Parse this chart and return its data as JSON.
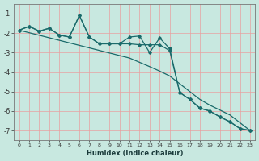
{
  "xlabel": "Humidex (Indice chaleur)",
  "background_color": "#c8e8e0",
  "grid_color": "#e8a0a0",
  "line_color": "#1a6b6b",
  "x": [
    0,
    1,
    2,
    3,
    4,
    5,
    6,
    7,
    8,
    9,
    10,
    11,
    12,
    13,
    14,
    15,
    16,
    17,
    18,
    19,
    20,
    21,
    22,
    23
  ],
  "y_line1": [
    -1.85,
    -1.65,
    -1.9,
    -1.75,
    -2.1,
    -2.2,
    -1.1,
    -2.2,
    -2.55,
    -2.55,
    -2.55,
    -2.2,
    -2.15,
    -3.0,
    -2.25,
    -2.8,
    -5.05,
    -5.4,
    -5.85,
    -6.0,
    -6.3,
    -6.55,
    -6.9,
    -7.0
  ],
  "y_line2": [
    -1.85,
    -1.65,
    -1.9,
    -1.75,
    -2.1,
    -2.2,
    -1.1,
    -2.2,
    -2.55,
    -2.55,
    -2.55,
    -2.55,
    -2.6,
    -2.6,
    -2.6,
    -2.9,
    -5.05,
    -5.4,
    -5.85,
    -6.0,
    -6.3,
    -6.55,
    -6.9,
    -7.0
  ],
  "y_trend": [
    -1.85,
    -1.98,
    -2.11,
    -2.24,
    -2.37,
    -2.5,
    -2.63,
    -2.76,
    -2.89,
    -3.02,
    -3.15,
    -3.28,
    -3.5,
    -3.72,
    -3.95,
    -4.2,
    -4.6,
    -5.0,
    -5.4,
    -5.7,
    -5.95,
    -6.2,
    -6.6,
    -7.0
  ],
  "ylim": [
    -7.5,
    -0.5
  ],
  "xlim": [
    -0.5,
    23.5
  ],
  "yticks": [
    -7,
    -6,
    -5,
    -4,
    -3,
    -2,
    -1
  ],
  "xticks": [
    0,
    1,
    2,
    3,
    4,
    5,
    6,
    7,
    8,
    9,
    10,
    11,
    12,
    13,
    14,
    15,
    16,
    17,
    18,
    19,
    20,
    21,
    22,
    23
  ]
}
